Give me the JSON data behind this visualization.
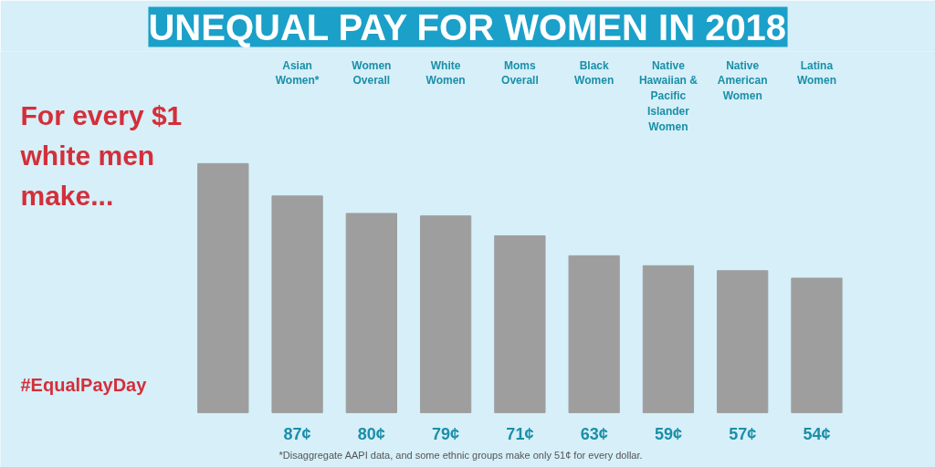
{
  "chart_data": {
    "type": "bar",
    "title": "UNEQUAL PAY FOR WOMEN IN 2018",
    "subtitle": "For every $1 white men make...",
    "categories": [
      null,
      "Asian Women*",
      "Women Overall",
      "White Women",
      "Moms Overall",
      "Black Women",
      "Native Hawaiian & Pacific Islander Women",
      "Native American Women",
      "Latina Women"
    ],
    "values": [
      100,
      87,
      80,
      79,
      71,
      63,
      59,
      57,
      54
    ],
    "value_labels": [
      null,
      "87¢",
      "80¢",
      "79¢",
      "71¢",
      "63¢",
      "59¢",
      "57¢",
      "54¢"
    ],
    "color": "#9e9e9e",
    "annotations": [
      "#EqualPayDay",
      "*Disaggregate AAPI data, and some ethnic groups make only 51¢ for every dollar."
    ]
  }
}
